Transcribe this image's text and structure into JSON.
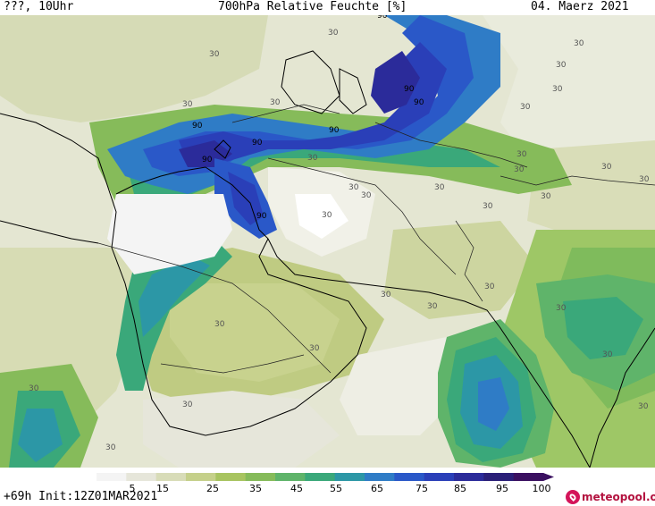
{
  "header": {
    "left": "???, 10Uhr",
    "title": "700hPa Relative Feuchte [%]",
    "date": "04. Maerz 2021"
  },
  "footer": {
    "run": "+69h Init:12Z01MAR2021",
    "brand": "meteopool.org"
  },
  "colorbar": {
    "ticks": [
      "5",
      "15",
      "25",
      "35",
      "45",
      "55",
      "65",
      "75",
      "85",
      "95",
      "100"
    ],
    "colors": [
      "#f4f4f4",
      "#e6e6da",
      "#d8dcb8",
      "#c5d08a",
      "#a8c460",
      "#86bb5a",
      "#5fb46a",
      "#3aa87a",
      "#2c97a6",
      "#2f7cc6",
      "#2a58c8",
      "#2a3fb8",
      "#2b2b9a",
      "#2a1f78",
      "#3a1060"
    ]
  },
  "contour_labels": {
    "values": [
      "30",
      "30",
      "30",
      "30",
      "30",
      "30",
      "30",
      "30",
      "30",
      "30",
      "30",
      "30",
      "30",
      "30",
      "30",
      "30",
      "30",
      "30",
      "30",
      "30",
      "30",
      "30",
      "30",
      "30",
      "30",
      "30",
      "30",
      "30",
      "30",
      "30",
      "90",
      "90",
      "90",
      "90",
      "90",
      "90",
      "90",
      "90"
    ]
  }
}
